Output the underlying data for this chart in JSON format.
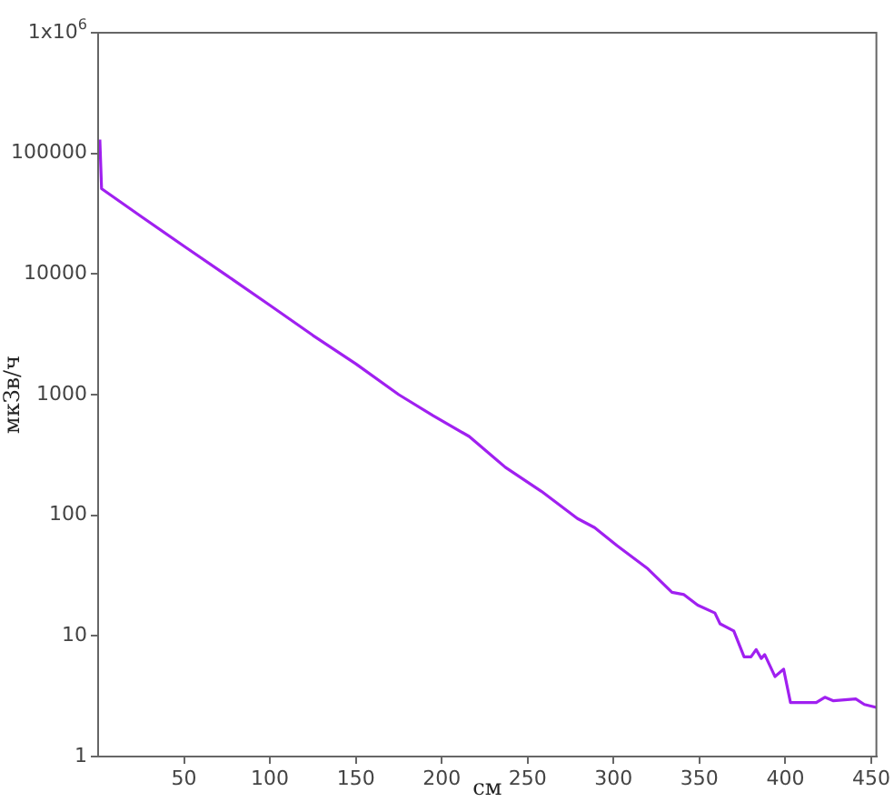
{
  "chart_data": {
    "type": "line",
    "xlabel": "см",
    "ylabel": "мкЗв/ч",
    "log": "y",
    "grid": false,
    "legend": false,
    "marker": "none",
    "line_style": "solid",
    "xlim": [
      0,
      453
    ],
    "xticks": [
      50,
      100,
      150,
      200,
      250,
      300,
      350,
      400,
      450
    ],
    "ylim": [
      1,
      1000000
    ],
    "yticks": [
      1,
      10,
      100,
      1000,
      10000,
      100000,
      {
        "value": 1000000,
        "label": "1x10$^{6}$"
      }
    ],
    "x": [
      1,
      2,
      25,
      50,
      75,
      100,
      125,
      150,
      175,
      195,
      216,
      237,
      258,
      279,
      289,
      302,
      320,
      334,
      341,
      349,
      359,
      362,
      370,
      376,
      380,
      383,
      386,
      388,
      394,
      399,
      403,
      418,
      423,
      428,
      441,
      446,
      453
    ],
    "series": [
      {
        "color": "#a020f0",
        "values": [
          130000,
          51000,
          30000,
          17000,
          9700,
          5500,
          3100,
          1800,
          1000,
          670,
          450,
          250,
          158,
          94,
          79,
          56,
          36,
          23,
          22,
          18,
          15.5,
          12.6,
          11,
          6.7,
          6.7,
          7.7,
          6.5,
          7,
          4.6,
          5.3,
          2.8,
          2.8,
          3.1,
          2.9,
          3.0,
          2.7,
          2.55
        ]
      }
    ]
  }
}
